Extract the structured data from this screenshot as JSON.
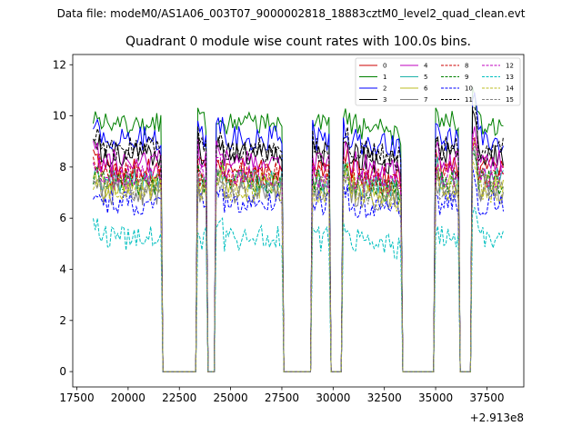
{
  "figure": {
    "suptitle": "Data file: modeM0/AS1A06_003T07_9000002818_18883cztM0_level2_quad_clean.evt"
  },
  "chart_data": {
    "type": "line",
    "title": "Quadrant 0 module wise count rates with 100.0s bins.",
    "xlabel": "",
    "ylabel": "",
    "x_offset_label": "+2.913e8",
    "xlim": [
      17300,
      39300
    ],
    "ylim": [
      -0.6,
      12.4
    ],
    "xticks": [
      17500,
      20000,
      22500,
      25000,
      27500,
      30000,
      32500,
      35000,
      37500
    ],
    "yticks": [
      0,
      2,
      4,
      6,
      8,
      10,
      12
    ],
    "legend_position": "top-right",
    "bin_width": 100,
    "gti": [
      [
        18300,
        21600
      ],
      [
        23400,
        23800
      ],
      [
        24300,
        27500
      ],
      [
        29000,
        29800
      ],
      [
        30500,
        33300
      ],
      [
        35000,
        36100
      ],
      [
        36800,
        38300
      ]
    ],
    "series": [
      {
        "name": "0",
        "color": "#cc0000",
        "style": "solid",
        "level": 7.9
      },
      {
        "name": "1",
        "color": "#008000",
        "style": "solid",
        "level": 9.7
      },
      {
        "name": "2",
        "color": "#0000ff",
        "style": "solid",
        "level": 9.1
      },
      {
        "name": "3",
        "color": "#000000",
        "style": "solid",
        "level": 8.5
      },
      {
        "name": "4",
        "color": "#bf00bf",
        "style": "solid",
        "level": 8.2
      },
      {
        "name": "5",
        "color": "#20b2aa",
        "style": "solid",
        "level": 7.5
      },
      {
        "name": "6",
        "color": "#bcbd22",
        "style": "solid",
        "level": 7.3
      },
      {
        "name": "7",
        "color": "#808080",
        "style": "solid",
        "level": 7.0
      },
      {
        "name": "8",
        "color": "#cc0000",
        "style": "dashed",
        "level": 7.7
      },
      {
        "name": "9",
        "color": "#008000",
        "style": "dashed",
        "level": 7.4
      },
      {
        "name": "10",
        "color": "#0000ff",
        "style": "dashed",
        "level": 6.6
      },
      {
        "name": "11",
        "color": "#000000",
        "style": "dashed",
        "level": 8.7
      },
      {
        "name": "12",
        "color": "#bf00bf",
        "style": "dashed",
        "level": 7.6
      },
      {
        "name": "13",
        "color": "#00bfbf",
        "style": "dashed",
        "level": 5.2
      },
      {
        "name": "14",
        "color": "#bcbd22",
        "style": "dashed",
        "level": 7.1
      },
      {
        "name": "15",
        "color": "#808080",
        "style": "dashed",
        "level": 7.2
      }
    ]
  }
}
